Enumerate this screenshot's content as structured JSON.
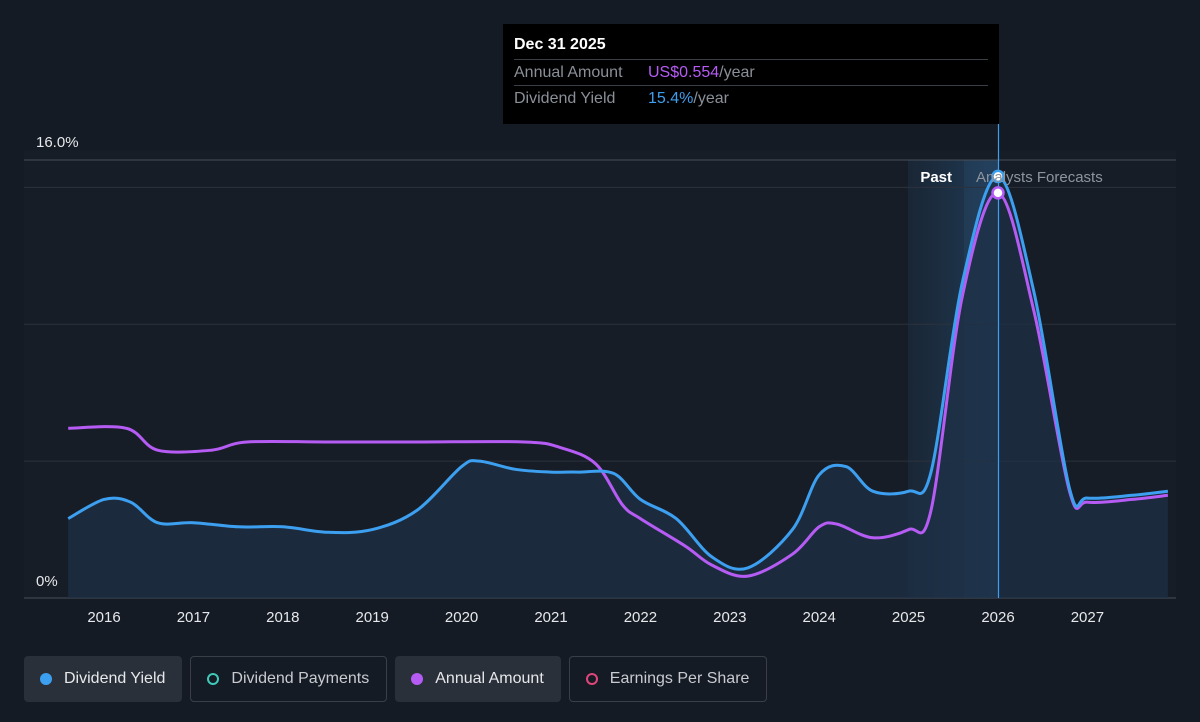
{
  "chart_data": {
    "type": "line",
    "x_ticks": [
      "2016",
      "2017",
      "2018",
      "2019",
      "2020",
      "2021",
      "2022",
      "2023",
      "2024",
      "2025",
      "2026",
      "2027"
    ],
    "y_tick_labels": {
      "top": "16.0%",
      "bottom": "0%"
    },
    "ylim": [
      0,
      16
    ],
    "regions": {
      "past": "Past",
      "forecast": "Analysts Forecasts"
    },
    "series": [
      {
        "name": "Dividend Yield",
        "color": "#3d9ff0",
        "points": [
          [
            2015.6,
            2.9
          ],
          [
            2016.0,
            3.6
          ],
          [
            2016.3,
            3.5
          ],
          [
            2016.6,
            2.75
          ],
          [
            2017.0,
            2.75
          ],
          [
            2017.5,
            2.6
          ],
          [
            2018.0,
            2.6
          ],
          [
            2018.5,
            2.4
          ],
          [
            2019.0,
            2.5
          ],
          [
            2019.5,
            3.2
          ],
          [
            2020.0,
            4.8
          ],
          [
            2020.2,
            5.0
          ],
          [
            2020.6,
            4.7
          ],
          [
            2021.0,
            4.6
          ],
          [
            2021.3,
            4.6
          ],
          [
            2021.7,
            4.55
          ],
          [
            2022.0,
            3.6
          ],
          [
            2022.4,
            2.9
          ],
          [
            2022.8,
            1.5
          ],
          [
            2023.2,
            1.1
          ],
          [
            2023.7,
            2.5
          ],
          [
            2024.0,
            4.5
          ],
          [
            2024.3,
            4.8
          ],
          [
            2024.6,
            3.9
          ],
          [
            2025.0,
            3.9
          ],
          [
            2025.25,
            4.6
          ],
          [
            2025.6,
            11.5
          ],
          [
            2026.0,
            15.4
          ],
          [
            2026.4,
            11.2
          ],
          [
            2026.8,
            4.0
          ],
          [
            2027.0,
            3.65
          ],
          [
            2027.5,
            3.75
          ],
          [
            2027.9,
            3.9
          ]
        ]
      },
      {
        "name": "Annual Amount",
        "color": "#b65cf5",
        "points": [
          [
            2015.6,
            6.2
          ],
          [
            2016.25,
            6.2
          ],
          [
            2016.6,
            5.4
          ],
          [
            2017.2,
            5.4
          ],
          [
            2017.6,
            5.7
          ],
          [
            2018.5,
            5.7
          ],
          [
            2019.5,
            5.7
          ],
          [
            2020.7,
            5.7
          ],
          [
            2021.1,
            5.5
          ],
          [
            2021.5,
            4.9
          ],
          [
            2021.8,
            3.4
          ],
          [
            2022.0,
            2.9
          ],
          [
            2022.5,
            1.9
          ],
          [
            2022.8,
            1.2
          ],
          [
            2023.2,
            0.8
          ],
          [
            2023.7,
            1.6
          ],
          [
            2024.0,
            2.6
          ],
          [
            2024.2,
            2.7
          ],
          [
            2024.6,
            2.2
          ],
          [
            2025.0,
            2.5
          ],
          [
            2025.25,
            3.2
          ],
          [
            2025.6,
            11.0
          ],
          [
            2026.0,
            14.8
          ],
          [
            2026.4,
            10.5
          ],
          [
            2026.8,
            3.9
          ],
          [
            2027.0,
            3.5
          ],
          [
            2027.5,
            3.6
          ],
          [
            2027.9,
            3.75
          ]
        ]
      }
    ],
    "highlight": {
      "x": 2026.0,
      "yield": 15.4,
      "amount": 14.8
    },
    "tooltip": {
      "date": "Dec 31 2025",
      "rows": [
        {
          "label": "Annual Amount",
          "value": "US$0.554",
          "unit": "/year"
        },
        {
          "label": "Dividend Yield",
          "value": "15.4%",
          "unit": "/year"
        }
      ]
    }
  },
  "legend": [
    {
      "label": "Dividend Yield",
      "color": "#3d9ff0",
      "state": "active",
      "style": "filled"
    },
    {
      "label": "Dividend Payments",
      "color": "#3ec9b8",
      "state": "inactive",
      "style": "hollow"
    },
    {
      "label": "Annual Amount",
      "color": "#b65cf5",
      "state": "active",
      "style": "filled"
    },
    {
      "label": "Earnings Per Share",
      "color": "#e0457b",
      "state": "inactive",
      "style": "hollow"
    }
  ]
}
